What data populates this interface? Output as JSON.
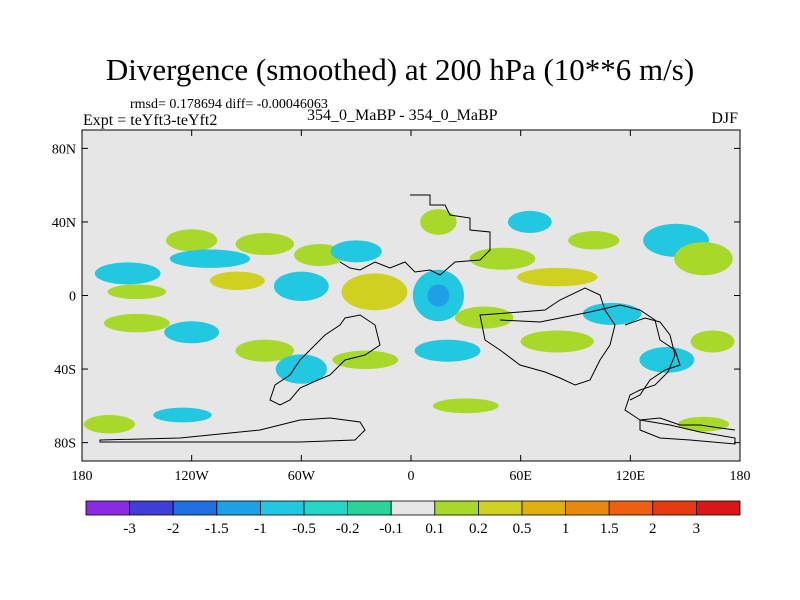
{
  "chart_data": {
    "type": "heatmap",
    "title": "Divergence (smoothed) at 200 hPa (10**6 m/s)",
    "subtitle_stats": "rmsd= 0.178694 diff= -0.00046063",
    "experiment": "Expt = teYft3-teYft2",
    "case": "354_0_MaBP - 354_0_MaBP",
    "season": "DJF",
    "x_axis": {
      "range": [
        -180,
        180
      ],
      "ticks": [
        -180,
        -120,
        -60,
        0,
        60,
        120,
        180
      ],
      "tick_labels": [
        "180",
        "120W",
        "60W",
        "0",
        "60E",
        "120E",
        "180"
      ]
    },
    "y_axis": {
      "range": [
        -90,
        90
      ],
      "ticks": [
        80,
        40,
        0,
        -40,
        -80
      ],
      "tick_labels": [
        "80N",
        "40N",
        "0",
        "40S",
        "80S"
      ]
    },
    "colorbar": {
      "levels": [
        "-3",
        "-2",
        "-1.5",
        "-1",
        "-0.5",
        "-0.2",
        "-0.1",
        "0.1",
        "0.2",
        "0.5",
        "1",
        "1.5",
        "2",
        "3"
      ],
      "colors": [
        "#8a2be2",
        "#3f3fd6",
        "#1f6fe0",
        "#1ea0e6",
        "#22c7e0",
        "#23d6c5",
        "#2ad39a",
        "#e6e6e6",
        "#a8d82a",
        "#cfd020",
        "#e0b010",
        "#e88a10",
        "#ec6010",
        "#e83a10",
        "#d81818"
      ]
    },
    "blobs": [
      {
        "lon": -155,
        "lat": 12,
        "rx": 18,
        "ry": 6,
        "level": 4
      },
      {
        "lon": -150,
        "lat": 2,
        "rx": 16,
        "ry": 4,
        "level": 8
      },
      {
        "lon": -120,
        "lat": 30,
        "rx": 14,
        "ry": 6,
        "level": 8
      },
      {
        "lon": -110,
        "lat": 20,
        "rx": 22,
        "ry": 5,
        "level": 4
      },
      {
        "lon": -95,
        "lat": 8,
        "rx": 15,
        "ry": 5,
        "level": 9
      },
      {
        "lon": -80,
        "lat": 28,
        "rx": 16,
        "ry": 6,
        "level": 8
      },
      {
        "lon": -60,
        "lat": 5,
        "rx": 15,
        "ry": 8,
        "level": 4
      },
      {
        "lon": -50,
        "lat": 22,
        "rx": 14,
        "ry": 6,
        "level": 8
      },
      {
        "lon": -20,
        "lat": 2,
        "rx": 18,
        "ry": 10,
        "level": 9
      },
      {
        "lon": -30,
        "lat": 24,
        "rx": 14,
        "ry": 6,
        "level": 4
      },
      {
        "lon": 15,
        "lat": 0,
        "rx": 14,
        "ry": 14,
        "level": 4
      },
      {
        "lon": 15,
        "lat": 0,
        "rx": 6,
        "ry": 6,
        "level": 3
      },
      {
        "lon": 15,
        "lat": 40,
        "rx": 10,
        "ry": 7,
        "level": 8
      },
      {
        "lon": 50,
        "lat": 20,
        "rx": 18,
        "ry": 6,
        "level": 8
      },
      {
        "lon": 65,
        "lat": 40,
        "rx": 12,
        "ry": 6,
        "level": 4
      },
      {
        "lon": 80,
        "lat": 10,
        "rx": 22,
        "ry": 5,
        "level": 9
      },
      {
        "lon": 100,
        "lat": 30,
        "rx": 14,
        "ry": 5,
        "level": 8
      },
      {
        "lon": 145,
        "lat": 30,
        "rx": 18,
        "ry": 9,
        "level": 4
      },
      {
        "lon": 160,
        "lat": 20,
        "rx": 16,
        "ry": 9,
        "level": 8
      },
      {
        "lon": -150,
        "lat": -15,
        "rx": 18,
        "ry": 5,
        "level": 8
      },
      {
        "lon": -120,
        "lat": -20,
        "rx": 15,
        "ry": 6,
        "level": 4
      },
      {
        "lon": -80,
        "lat": -30,
        "rx": 16,
        "ry": 6,
        "level": 8
      },
      {
        "lon": -60,
        "lat": -40,
        "rx": 14,
        "ry": 8,
        "level": 4
      },
      {
        "lon": -25,
        "lat": -35,
        "rx": 18,
        "ry": 5,
        "level": 8
      },
      {
        "lon": 20,
        "lat": -30,
        "rx": 18,
        "ry": 6,
        "level": 4
      },
      {
        "lon": 40,
        "lat": -12,
        "rx": 16,
        "ry": 6,
        "level": 8
      },
      {
        "lon": 80,
        "lat": -25,
        "rx": 20,
        "ry": 6,
        "level": 8
      },
      {
        "lon": 110,
        "lat": -10,
        "rx": 16,
        "ry": 6,
        "level": 4
      },
      {
        "lon": 140,
        "lat": -35,
        "rx": 15,
        "ry": 7,
        "level": 4
      },
      {
        "lon": 165,
        "lat": -25,
        "rx": 12,
        "ry": 6,
        "level": 8
      },
      {
        "lon": -165,
        "lat": -70,
        "rx": 14,
        "ry": 5,
        "level": 8
      },
      {
        "lon": -125,
        "lat": -65,
        "rx": 16,
        "ry": 4,
        "level": 4
      },
      {
        "lon": 30,
        "lat": -60,
        "rx": 18,
        "ry": 4,
        "level": 8
      },
      {
        "lon": 160,
        "lat": -70,
        "rx": 14,
        "ry": 4,
        "level": 8
      }
    ]
  }
}
